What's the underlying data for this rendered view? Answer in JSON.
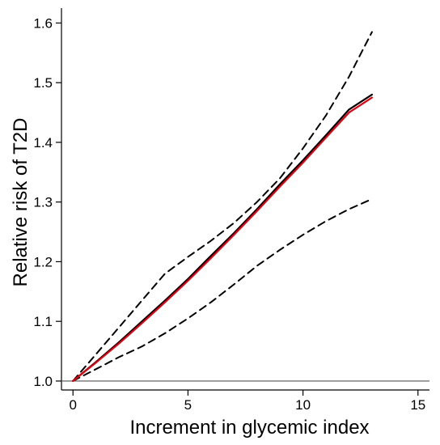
{
  "chart_data": {
    "type": "line",
    "title": "",
    "xlabel": "Increment in glycemic index",
    "ylabel": "Relative risk of T2D",
    "xlim": [
      -0.5,
      15.5
    ],
    "ylim": [
      0.985,
      1.625
    ],
    "x_ticks": [
      0,
      5,
      10,
      15
    ],
    "x_tick_labels": [
      "0",
      "5",
      "10",
      "15"
    ],
    "y_ticks": [
      1.0,
      1.1,
      1.2,
      1.3,
      1.4,
      1.5,
      1.6
    ],
    "y_tick_labels": [
      "1.0",
      "1.1",
      "1.2",
      "1.3",
      "1.4",
      "1.5",
      "1.6"
    ],
    "reference_line": 1.0,
    "grid": false,
    "legend": "none",
    "series": [
      {
        "style": "solid",
        "color": "#000000",
        "x": [
          0,
          1,
          2,
          3,
          4,
          5,
          6,
          7,
          8,
          9,
          10,
          11,
          12,
          13
        ],
        "y": [
          1.0,
          1.032,
          1.065,
          1.1,
          1.135,
          1.171,
          1.21,
          1.248,
          1.288,
          1.33,
          1.37,
          1.412,
          1.455,
          1.48
        ]
      },
      {
        "style": "solid",
        "color": "#e3000f",
        "x": [
          0,
          1,
          2,
          3,
          4,
          5,
          6,
          7,
          8,
          9,
          10,
          11,
          12,
          13
        ],
        "y": [
          1.0,
          1.031,
          1.063,
          1.097,
          1.132,
          1.168,
          1.206,
          1.245,
          1.285,
          1.326,
          1.366,
          1.408,
          1.45,
          1.475
        ]
      },
      {
        "style": "dashed",
        "color": "#000000",
        "x": [
          0,
          1,
          2,
          3,
          4,
          5,
          6,
          7,
          8,
          9,
          10,
          11,
          12,
          13
        ],
        "y": [
          1.0,
          1.045,
          1.09,
          1.135,
          1.18,
          1.208,
          1.235,
          1.265,
          1.3,
          1.34,
          1.39,
          1.445,
          1.51,
          1.585
        ]
      },
      {
        "style": "dashed",
        "color": "#000000",
        "x": [
          0,
          1,
          2,
          3,
          4,
          5,
          6,
          7,
          8,
          9,
          10,
          11,
          12,
          13
        ],
        "y": [
          1.0,
          1.02,
          1.04,
          1.058,
          1.08,
          1.105,
          1.132,
          1.162,
          1.193,
          1.22,
          1.245,
          1.268,
          1.288,
          1.305
        ]
      }
    ]
  }
}
